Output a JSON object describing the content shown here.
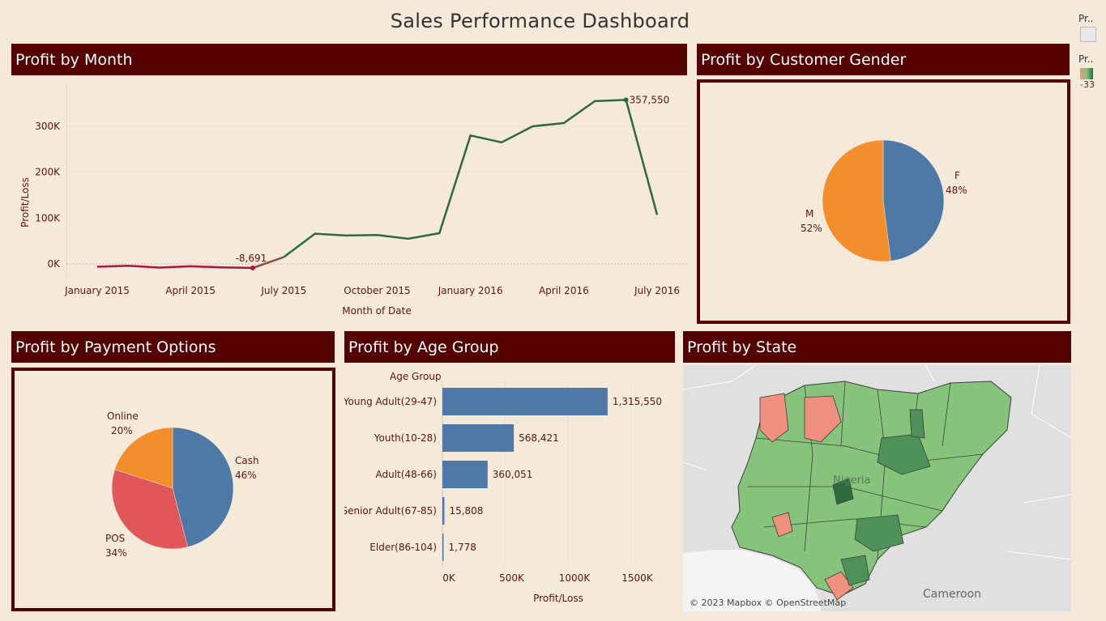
{
  "dashboard": {
    "title": "Sales Performance Dashboard"
  },
  "legends": {
    "legend1_label": "Pr..",
    "legend2_label": "Pr..",
    "legend2_value": "-33"
  },
  "panels": {
    "month": "Profit by Month",
    "gender": "Profit by Customer Gender",
    "payment": "Profit by Payment Options",
    "age": "Profit by Age Group",
    "state": "Profit by State"
  },
  "colors": {
    "header": "#540000",
    "line_green": "#2e6b3c",
    "line_red": "#b0143c",
    "blue": "#4e79a7",
    "orange": "#f28e2b",
    "red": "#e15759",
    "map_green": "#86c47c",
    "map_dark_green": "#4e9159",
    "map_salmon": "#f0907e"
  },
  "chart_data": [
    {
      "type": "line",
      "title": "Profit by Month",
      "xlabel": "Month of Date",
      "ylabel": "Profit/Loss",
      "x": [
        "2015-01",
        "2015-02",
        "2015-03",
        "2015-04",
        "2015-05",
        "2015-06",
        "2015-07",
        "2015-08",
        "2015-09",
        "2015-10",
        "2015-11",
        "2015-12",
        "2016-01",
        "2016-02",
        "2016-03",
        "2016-04",
        "2016-05",
        "2016-06",
        "2016-07"
      ],
      "values": [
        -6000,
        -4000,
        -8000,
        -5000,
        -7500,
        -8691,
        15000,
        66000,
        62000,
        63000,
        55000,
        67000,
        280000,
        265000,
        300000,
        307000,
        355000,
        357550,
        107000
      ],
      "x_ticks": [
        "January 2015",
        "April 2015",
        "July 2015",
        "October 2015",
        "January 2016",
        "April 2016",
        "July 2016"
      ],
      "y_ticks": [
        "0K",
        "100K",
        "200K",
        "300K"
      ],
      "ylim": [
        -30000,
        390000
      ],
      "annotations": [
        "-8,691",
        "357,550"
      ],
      "grid": true
    },
    {
      "type": "pie",
      "title": "Profit by Customer Gender",
      "slices": [
        {
          "label": "F",
          "pct": "48%",
          "value": 48,
          "color": "#4e79a7"
        },
        {
          "label": "M",
          "pct": "52%",
          "value": 52,
          "color": "#f28e2b"
        }
      ]
    },
    {
      "type": "pie",
      "title": "Profit by Payment Options",
      "slices": [
        {
          "label": "Cash",
          "pct": "46%",
          "value": 46,
          "color": "#4e79a7"
        },
        {
          "label": "POS",
          "pct": "34%",
          "value": 34,
          "color": "#e15759"
        },
        {
          "label": "Online",
          "pct": "20%",
          "value": 20,
          "color": "#f28e2b"
        }
      ]
    },
    {
      "type": "bar",
      "orientation": "horizontal",
      "title": "Profit by Age Group",
      "category_header": "Age Group",
      "categories": [
        "Young Adult(29-47)",
        "Youth(10-28)",
        "Adult(48-66)",
        "Senior Adult(67-85)",
        "Elder(86-104)"
      ],
      "values": [
        1315550,
        568421,
        360051,
        15808,
        1778
      ],
      "value_labels": [
        "1,315,550",
        "568,421",
        "360,051",
        "15,808",
        "1,778"
      ],
      "xlabel": "Profit/Loss",
      "x_ticks": [
        "0K",
        "500K",
        "1000K",
        "1500K"
      ],
      "xlim": [
        0,
        1800000
      ],
      "grid": true
    }
  ],
  "map": {
    "title": "Profit by State",
    "labels": [
      "Nigeria",
      "Cameroon"
    ],
    "credit": "© 2023 Mapbox © OpenStreetMap"
  }
}
